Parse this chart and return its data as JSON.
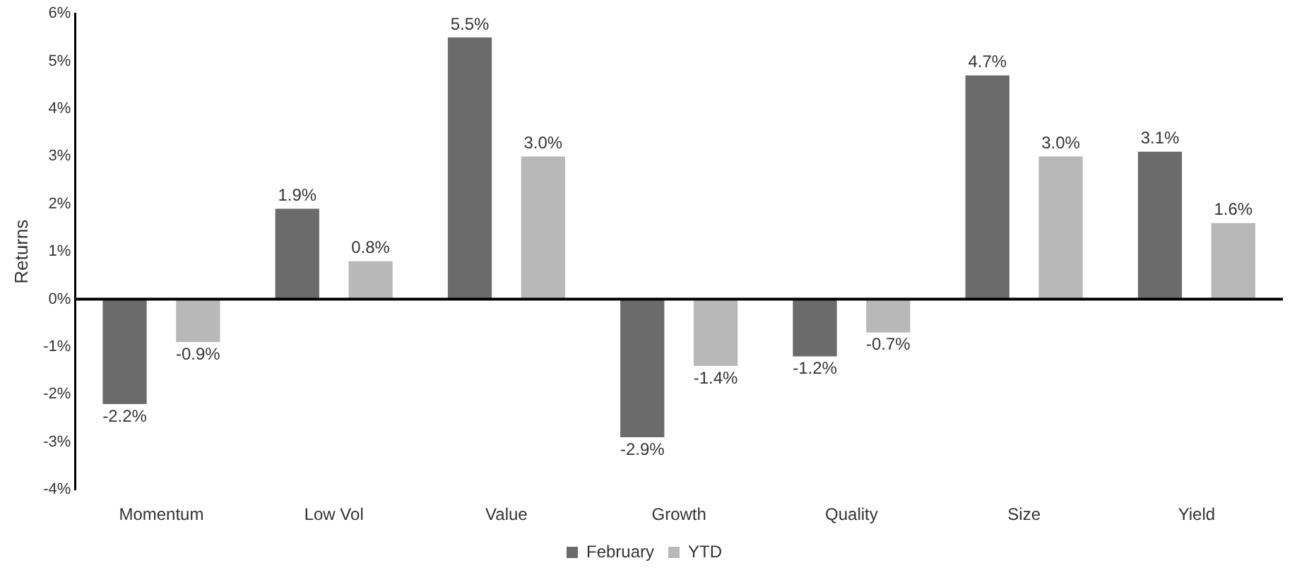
{
  "chart_data": {
    "type": "bar",
    "ylabel": "Returns",
    "categories": [
      "Momentum",
      "Low Vol",
      "Value",
      "Growth",
      "Quality",
      "Size",
      "Yield"
    ],
    "series": [
      {
        "name": "February",
        "color": "#6b6b6b",
        "values": [
          -2.2,
          1.9,
          5.5,
          -2.9,
          -1.2,
          4.7,
          3.1
        ],
        "value_labels": [
          "-2.2%",
          "1.9%",
          "5.5%",
          "-2.9%",
          "-1.2%",
          "4.7%",
          "3.1%"
        ]
      },
      {
        "name": "YTD",
        "color": "#b8b8b8",
        "values": [
          -0.9,
          0.8,
          3.0,
          -1.4,
          -0.7,
          3.0,
          1.6
        ],
        "value_labels": [
          "-0.9%",
          "0.8%",
          "3.0%",
          "-1.4%",
          "-0.7%",
          "3.0%",
          "1.6%"
        ]
      }
    ],
    "ylim": [
      -4,
      6
    ],
    "yticks": [
      {
        "value": -4,
        "label": "-4%"
      },
      {
        "value": -3,
        "label": "-3%"
      },
      {
        "value": -2,
        "label": "-2%"
      },
      {
        "value": -1,
        "label": "-1%"
      },
      {
        "value": 0,
        "label": "0%"
      },
      {
        "value": 1,
        "label": "1%"
      },
      {
        "value": 2,
        "label": "2%"
      },
      {
        "value": 3,
        "label": "3%"
      },
      {
        "value": 4,
        "label": "4%"
      },
      {
        "value": 5,
        "label": "5%"
      },
      {
        "value": 6,
        "label": "6%"
      }
    ],
    "ref_lines": [
      {
        "axis": "y",
        "value": 0,
        "color": "#000000"
      }
    ],
    "grid": false,
    "legend": "bottom"
  }
}
